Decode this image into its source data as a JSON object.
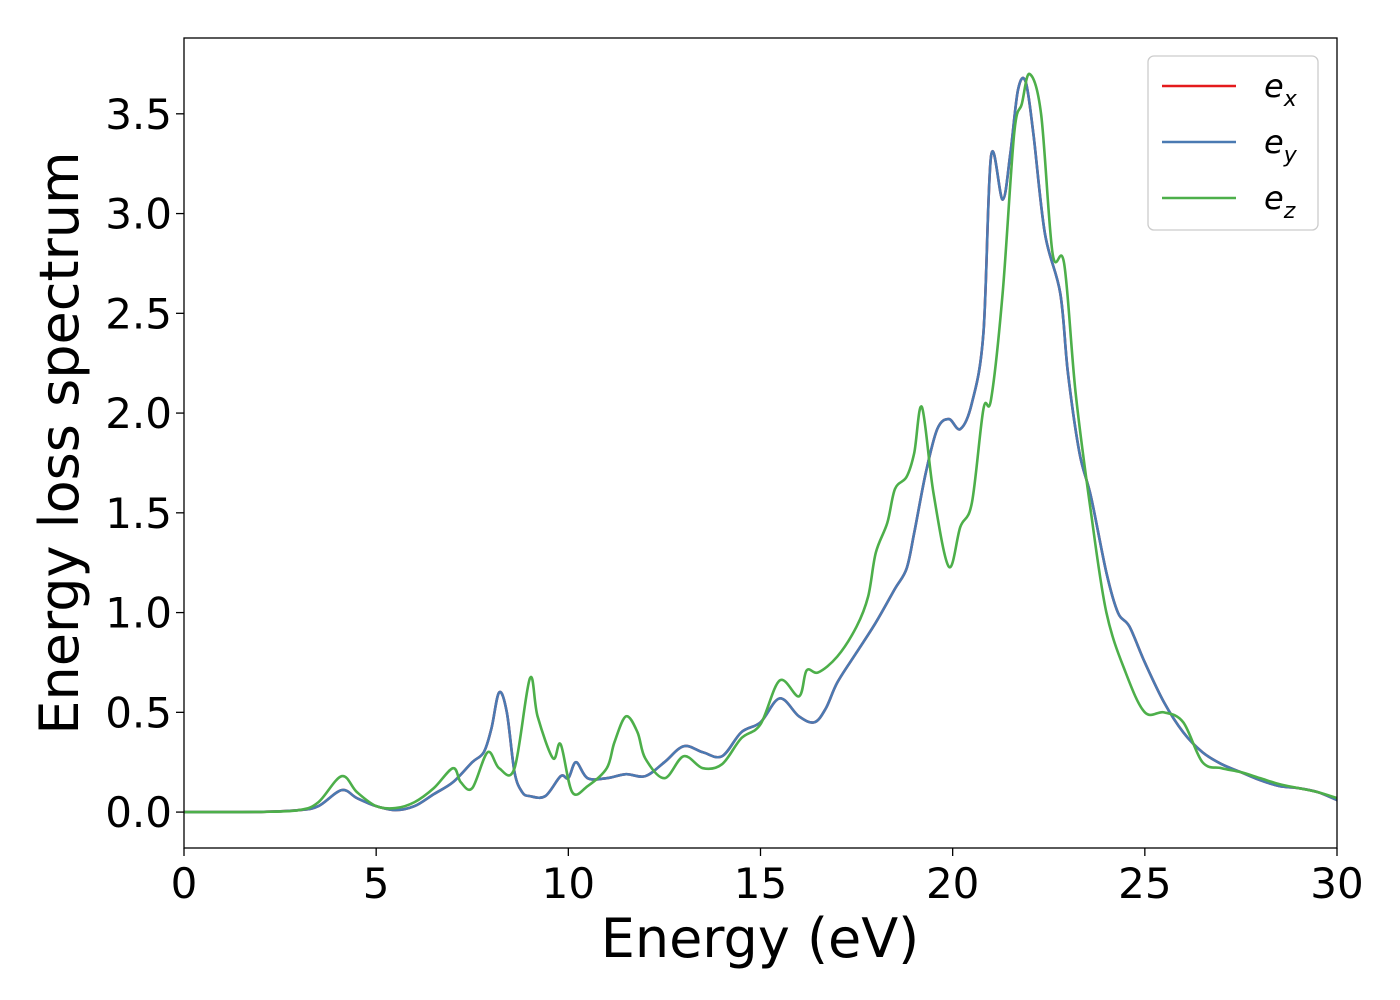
{
  "chart_data": {
    "type": "line",
    "title": "",
    "xlabel": "Energy (eV)",
    "ylabel": "Energy loss spectrum",
    "xlim": [
      0,
      30
    ],
    "ylim": [
      -0.18,
      3.88
    ],
    "xticks": [
      0,
      5,
      10,
      15,
      20,
      25,
      30
    ],
    "yticks": [
      0.0,
      0.5,
      1.0,
      1.5,
      2.0,
      2.5,
      3.0,
      3.5
    ],
    "xtick_labels": [
      "0",
      "5",
      "10",
      "15",
      "20",
      "25",
      "30"
    ],
    "ytick_labels": [
      "0.0",
      "0.5",
      "1.0",
      "1.5",
      "2.0",
      "2.5",
      "3.0",
      "3.5"
    ],
    "grid": false,
    "legend_position": "top-right",
    "series": [
      {
        "name": "e_x",
        "label_base": "e",
        "label_sub": "x",
        "color": "#e41a1c",
        "points": [
          [
            0,
            0
          ],
          [
            2,
            0.001
          ],
          [
            3,
            0.01
          ],
          [
            3.5,
            0.03
          ],
          [
            4.1,
            0.11
          ],
          [
            4.5,
            0.07
          ],
          [
            5,
            0.03
          ],
          [
            5.5,
            0.01
          ],
          [
            6,
            0.03
          ],
          [
            6.5,
            0.09
          ],
          [
            7,
            0.15
          ],
          [
            7.5,
            0.25
          ],
          [
            7.8,
            0.3
          ],
          [
            8.0,
            0.42
          ],
          [
            8.2,
            0.6
          ],
          [
            8.4,
            0.5
          ],
          [
            8.6,
            0.2
          ],
          [
            8.8,
            0.1
          ],
          [
            9.0,
            0.08
          ],
          [
            9.4,
            0.08
          ],
          [
            9.8,
            0.18
          ],
          [
            10.0,
            0.17
          ],
          [
            10.2,
            0.25
          ],
          [
            10.5,
            0.17
          ],
          [
            11,
            0.17
          ],
          [
            11.5,
            0.19
          ],
          [
            12,
            0.18
          ],
          [
            12.5,
            0.25
          ],
          [
            13,
            0.33
          ],
          [
            13.5,
            0.3
          ],
          [
            14,
            0.28
          ],
          [
            14.5,
            0.4
          ],
          [
            15,
            0.45
          ],
          [
            15.5,
            0.57
          ],
          [
            16,
            0.48
          ],
          [
            16.4,
            0.45
          ],
          [
            16.7,
            0.52
          ],
          [
            17,
            0.65
          ],
          [
            17.5,
            0.8
          ],
          [
            18,
            0.95
          ],
          [
            18.5,
            1.12
          ],
          [
            18.8,
            1.22
          ],
          [
            19,
            1.4
          ],
          [
            19.3,
            1.7
          ],
          [
            19.6,
            1.92
          ],
          [
            19.9,
            1.97
          ],
          [
            20.2,
            1.92
          ],
          [
            20.5,
            2.05
          ],
          [
            20.8,
            2.4
          ],
          [
            21.0,
            3.29
          ],
          [
            21.3,
            3.07
          ],
          [
            21.5,
            3.3
          ],
          [
            21.7,
            3.62
          ],
          [
            21.9,
            3.66
          ],
          [
            22.1,
            3.4
          ],
          [
            22.4,
            2.9
          ],
          [
            22.8,
            2.6
          ],
          [
            23.0,
            2.2
          ],
          [
            23.3,
            1.8
          ],
          [
            23.6,
            1.58
          ],
          [
            24.0,
            1.2
          ],
          [
            24.3,
            1.0
          ],
          [
            24.6,
            0.93
          ],
          [
            25,
            0.75
          ],
          [
            25.5,
            0.55
          ],
          [
            26,
            0.4
          ],
          [
            26.5,
            0.3
          ],
          [
            27,
            0.24
          ],
          [
            27.5,
            0.2
          ],
          [
            28,
            0.16
          ],
          [
            28.5,
            0.13
          ],
          [
            29,
            0.12
          ],
          [
            29.5,
            0.1
          ],
          [
            30,
            0.06
          ]
        ]
      },
      {
        "name": "e_y",
        "label_base": "e",
        "label_sub": "y",
        "color": "#4a7ab2",
        "points": [
          [
            0,
            0
          ],
          [
            2,
            0.001
          ],
          [
            3,
            0.01
          ],
          [
            3.5,
            0.03
          ],
          [
            4.1,
            0.11
          ],
          [
            4.5,
            0.07
          ],
          [
            5,
            0.03
          ],
          [
            5.5,
            0.01
          ],
          [
            6,
            0.03
          ],
          [
            6.5,
            0.09
          ],
          [
            7,
            0.15
          ],
          [
            7.5,
            0.25
          ],
          [
            7.8,
            0.3
          ],
          [
            8.0,
            0.42
          ],
          [
            8.2,
            0.6
          ],
          [
            8.4,
            0.5
          ],
          [
            8.6,
            0.2
          ],
          [
            8.8,
            0.1
          ],
          [
            9.0,
            0.08
          ],
          [
            9.4,
            0.08
          ],
          [
            9.8,
            0.18
          ],
          [
            10.0,
            0.17
          ],
          [
            10.2,
            0.25
          ],
          [
            10.5,
            0.17
          ],
          [
            11,
            0.17
          ],
          [
            11.5,
            0.19
          ],
          [
            12,
            0.18
          ],
          [
            12.5,
            0.25
          ],
          [
            13,
            0.33
          ],
          [
            13.5,
            0.3
          ],
          [
            14,
            0.28
          ],
          [
            14.5,
            0.4
          ],
          [
            15,
            0.45
          ],
          [
            15.5,
            0.57
          ],
          [
            16,
            0.48
          ],
          [
            16.4,
            0.45
          ],
          [
            16.7,
            0.52
          ],
          [
            17,
            0.65
          ],
          [
            17.5,
            0.8
          ],
          [
            18,
            0.95
          ],
          [
            18.5,
            1.12
          ],
          [
            18.8,
            1.22
          ],
          [
            19,
            1.4
          ],
          [
            19.3,
            1.7
          ],
          [
            19.6,
            1.92
          ],
          [
            19.9,
            1.97
          ],
          [
            20.2,
            1.92
          ],
          [
            20.5,
            2.05
          ],
          [
            20.8,
            2.4
          ],
          [
            21.0,
            3.29
          ],
          [
            21.3,
            3.07
          ],
          [
            21.5,
            3.3
          ],
          [
            21.7,
            3.62
          ],
          [
            21.9,
            3.66
          ],
          [
            22.1,
            3.4
          ],
          [
            22.4,
            2.9
          ],
          [
            22.8,
            2.6
          ],
          [
            23.0,
            2.2
          ],
          [
            23.3,
            1.8
          ],
          [
            23.6,
            1.58
          ],
          [
            24.0,
            1.2
          ],
          [
            24.3,
            1.0
          ],
          [
            24.6,
            0.93
          ],
          [
            25,
            0.75
          ],
          [
            25.5,
            0.55
          ],
          [
            26,
            0.4
          ],
          [
            26.5,
            0.3
          ],
          [
            27,
            0.24
          ],
          [
            27.5,
            0.2
          ],
          [
            28,
            0.16
          ],
          [
            28.5,
            0.13
          ],
          [
            29,
            0.12
          ],
          [
            29.5,
            0.1
          ],
          [
            30,
            0.06
          ]
        ]
      },
      {
        "name": "e_z",
        "label_base": "e",
        "label_sub": "z",
        "color": "#4daf4a",
        "points": [
          [
            0,
            0
          ],
          [
            2,
            0.001
          ],
          [
            3,
            0.01
          ],
          [
            3.5,
            0.05
          ],
          [
            4.1,
            0.18
          ],
          [
            4.5,
            0.1
          ],
          [
            5,
            0.03
          ],
          [
            5.5,
            0.02
          ],
          [
            6,
            0.05
          ],
          [
            6.5,
            0.12
          ],
          [
            7,
            0.22
          ],
          [
            7.2,
            0.15
          ],
          [
            7.5,
            0.12
          ],
          [
            7.9,
            0.3
          ],
          [
            8.2,
            0.22
          ],
          [
            8.6,
            0.22
          ],
          [
            9.0,
            0.67
          ],
          [
            9.2,
            0.48
          ],
          [
            9.6,
            0.27
          ],
          [
            9.8,
            0.34
          ],
          [
            10.1,
            0.1
          ],
          [
            10.5,
            0.13
          ],
          [
            11,
            0.22
          ],
          [
            11.2,
            0.35
          ],
          [
            11.5,
            0.48
          ],
          [
            11.8,
            0.4
          ],
          [
            12,
            0.27
          ],
          [
            12.5,
            0.17
          ],
          [
            13,
            0.28
          ],
          [
            13.5,
            0.22
          ],
          [
            14,
            0.24
          ],
          [
            14.5,
            0.37
          ],
          [
            15,
            0.44
          ],
          [
            15.5,
            0.66
          ],
          [
            16,
            0.58
          ],
          [
            16.2,
            0.71
          ],
          [
            16.5,
            0.7
          ],
          [
            17,
            0.78
          ],
          [
            17.5,
            0.93
          ],
          [
            17.8,
            1.08
          ],
          [
            18,
            1.3
          ],
          [
            18.3,
            1.45
          ],
          [
            18.5,
            1.62
          ],
          [
            18.8,
            1.68
          ],
          [
            19.0,
            1.8
          ],
          [
            19.2,
            2.03
          ],
          [
            19.5,
            1.6
          ],
          [
            19.9,
            1.23
          ],
          [
            20.2,
            1.43
          ],
          [
            20.5,
            1.55
          ],
          [
            20.8,
            2.02
          ],
          [
            21.0,
            2.07
          ],
          [
            21.3,
            2.6
          ],
          [
            21.6,
            3.4
          ],
          [
            21.8,
            3.55
          ],
          [
            22.0,
            3.7
          ],
          [
            22.3,
            3.5
          ],
          [
            22.6,
            2.8
          ],
          [
            22.9,
            2.75
          ],
          [
            23.2,
            2.1
          ],
          [
            23.6,
            1.5
          ],
          [
            24,
            1.0
          ],
          [
            24.5,
            0.7
          ],
          [
            25,
            0.5
          ],
          [
            25.5,
            0.5
          ],
          [
            26,
            0.45
          ],
          [
            26.5,
            0.25
          ],
          [
            27,
            0.22
          ],
          [
            27.5,
            0.2
          ],
          [
            28,
            0.17
          ],
          [
            28.5,
            0.14
          ],
          [
            29,
            0.12
          ],
          [
            29.5,
            0.1
          ],
          [
            30,
            0.07
          ]
        ]
      }
    ]
  }
}
